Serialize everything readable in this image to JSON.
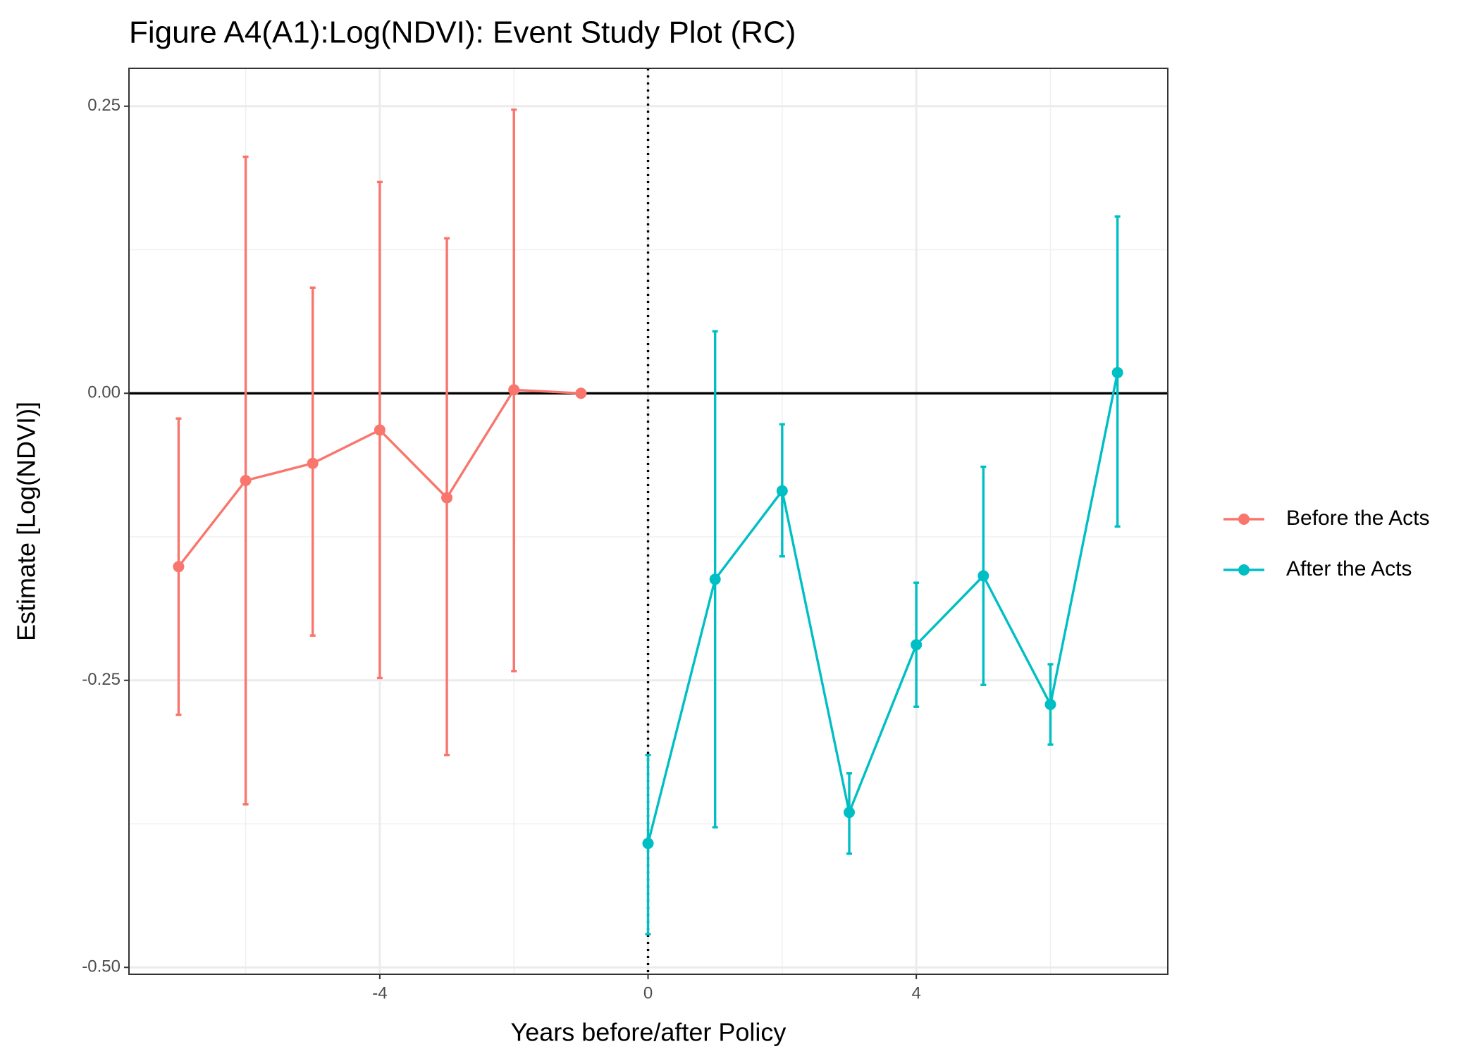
{
  "chart_data": {
    "type": "line",
    "title": "Figure A4(A1):Log(NDVI): Event Study Plot (RC)",
    "xlabel": "Years before/after Policy",
    "ylabel": "Estimate [Log(NDVI)]",
    "x": [
      -7,
      -6,
      -5,
      -4,
      -3,
      -2,
      -1,
      0,
      1,
      2,
      3,
      4,
      5,
      6,
      7
    ],
    "series": [
      {
        "name": "Before the Acts",
        "color": "#f8766d",
        "values": [
          -0.151,
          -0.076,
          -0.061,
          -0.032,
          -0.091,
          0.003,
          0,
          null,
          null,
          null,
          null,
          null,
          null,
          null,
          null
        ],
        "lower": [
          -0.28,
          -0.358,
          -0.211,
          -0.248,
          -0.315,
          -0.242,
          null,
          null,
          null,
          null,
          null,
          null,
          null,
          null,
          null
        ],
        "upper": [
          -0.022,
          0.206,
          0.092,
          0.184,
          0.135,
          0.247,
          null,
          null,
          null,
          null,
          null,
          null,
          null,
          null,
          null
        ]
      },
      {
        "name": "After the Acts",
        "color": "#00bfc4",
        "values": [
          null,
          null,
          null,
          null,
          null,
          null,
          null,
          -0.392,
          -0.162,
          -0.085,
          -0.365,
          -0.219,
          -0.159,
          -0.271,
          0.018
        ],
        "lower": [
          null,
          null,
          null,
          null,
          null,
          null,
          null,
          -0.471,
          -0.378,
          -0.142,
          -0.401,
          -0.273,
          -0.254,
          -0.306,
          -0.116
        ],
        "upper": [
          null,
          null,
          null,
          null,
          null,
          null,
          null,
          -0.315,
          0.054,
          -0.027,
          -0.331,
          -0.165,
          -0.064,
          -0.236,
          0.154
        ]
      }
    ],
    "xlim": [
      -7.74,
      7.75
    ],
    "xticks": [
      -4,
      0,
      4
    ],
    "xminor": [
      -6,
      -2,
      2,
      6
    ],
    "ylim": [
      -0.506,
      0.283
    ],
    "yticks": [
      0.25,
      {
        "value": 0,
        "label": "0.00"
      },
      -0.25,
      {
        "value": -0.5,
        "label": "-0.50"
      }
    ],
    "yminor": [
      -0.375,
      -0.125,
      0.125
    ],
    "hline": 0,
    "vline": 0,
    "grid": true,
    "legend": "right"
  }
}
